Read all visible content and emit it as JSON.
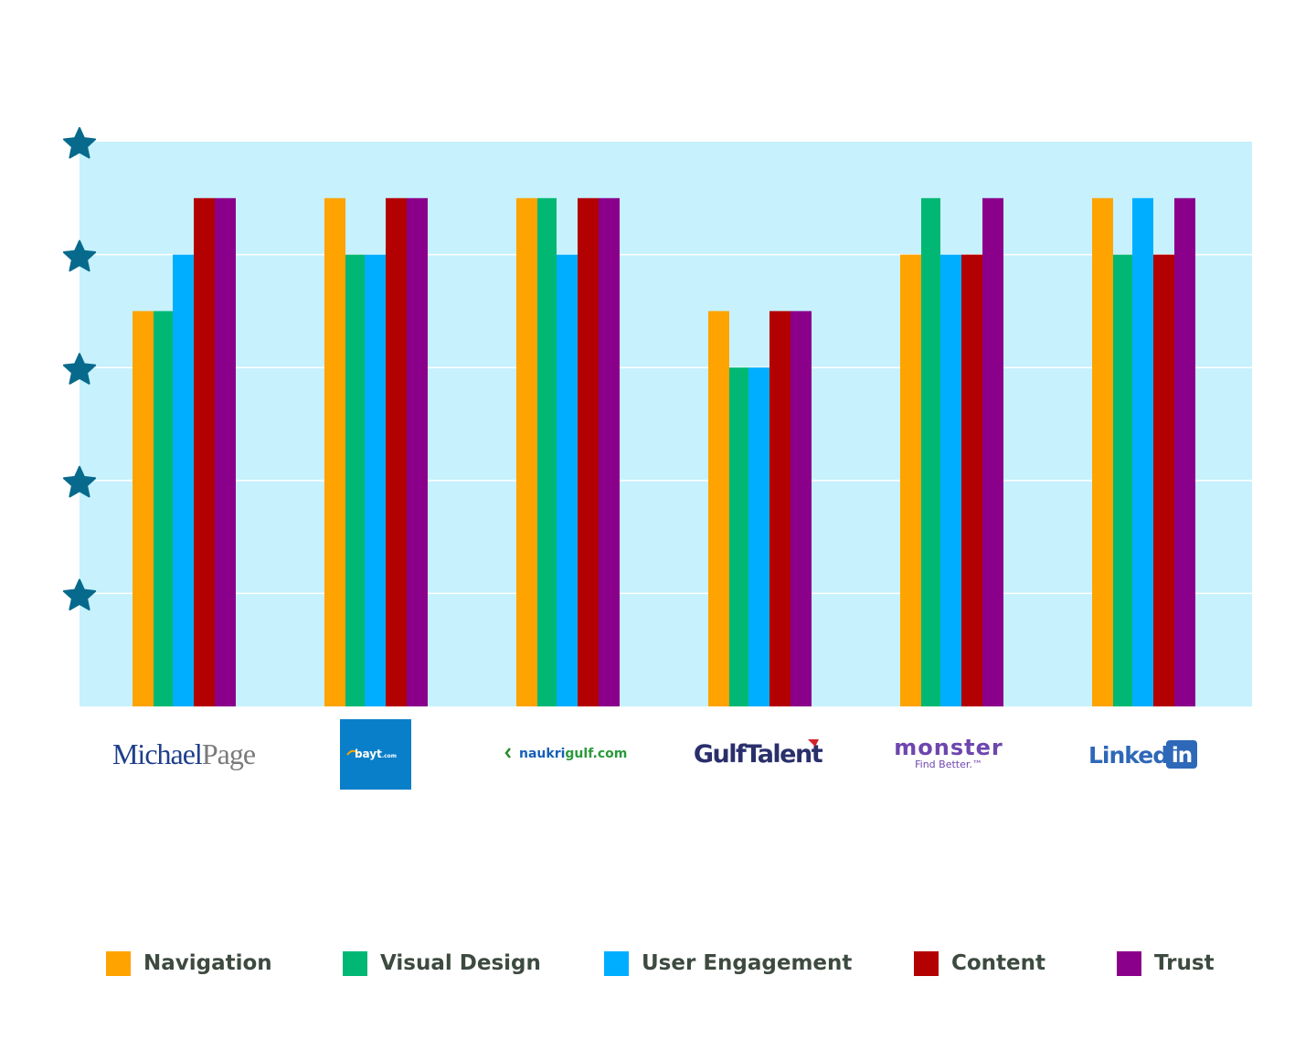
{
  "chart_data": {
    "type": "bar",
    "categories": [
      "MichaelPage",
      "bayt.com",
      "naukrigulf.com",
      "GulfTalent",
      "monster",
      "LinkedIn"
    ],
    "category_logos": [
      {
        "name": "michaelpage-logo",
        "text_a": "Michael",
        "text_b": "Page"
      },
      {
        "name": "bayt-logo",
        "text_a": "bayt",
        "text_b": ".com"
      },
      {
        "name": "naukrigulf-logo",
        "text_a": "naukri",
        "text_b": "gulf.com"
      },
      {
        "name": "gulftalent-logo",
        "text_a": "Gulf",
        "text_b": "Talent"
      },
      {
        "name": "monster-logo",
        "text_a": "monster",
        "text_b": "Find Better.™"
      },
      {
        "name": "linkedin-logo",
        "text_a": "Linked",
        "text_b": "in"
      }
    ],
    "series": [
      {
        "name": "Navigation",
        "color": "#ffa300",
        "values": [
          3.5,
          4.5,
          4.5,
          3.5,
          4,
          4.5
        ]
      },
      {
        "name": "Visual Design",
        "color": "#00b873",
        "values": [
          3.5,
          4,
          4.5,
          3,
          4.5,
          4
        ]
      },
      {
        "name": "User Engagement",
        "color": "#00aeff",
        "values": [
          4,
          4,
          4,
          3,
          4,
          4.5
        ]
      },
      {
        "name": "Content",
        "color": "#b30000",
        "values": [
          4.5,
          4.5,
          4.5,
          3.5,
          4,
          4
        ]
      },
      {
        "name": "Trust",
        "color": "#8b008b",
        "values": [
          4.5,
          4.5,
          4.5,
          3.5,
          4.5,
          4.5
        ]
      }
    ],
    "y_ticks": [
      1,
      2,
      3,
      4,
      5
    ],
    "y_tick_icon": "star-icon",
    "ylim": [
      0,
      5
    ],
    "grid": true,
    "plot_background": "#c6f1fd",
    "star_color": "#076a8c",
    "legend_position": "bottom",
    "title": "",
    "xlabel": "",
    "ylabel": ""
  }
}
